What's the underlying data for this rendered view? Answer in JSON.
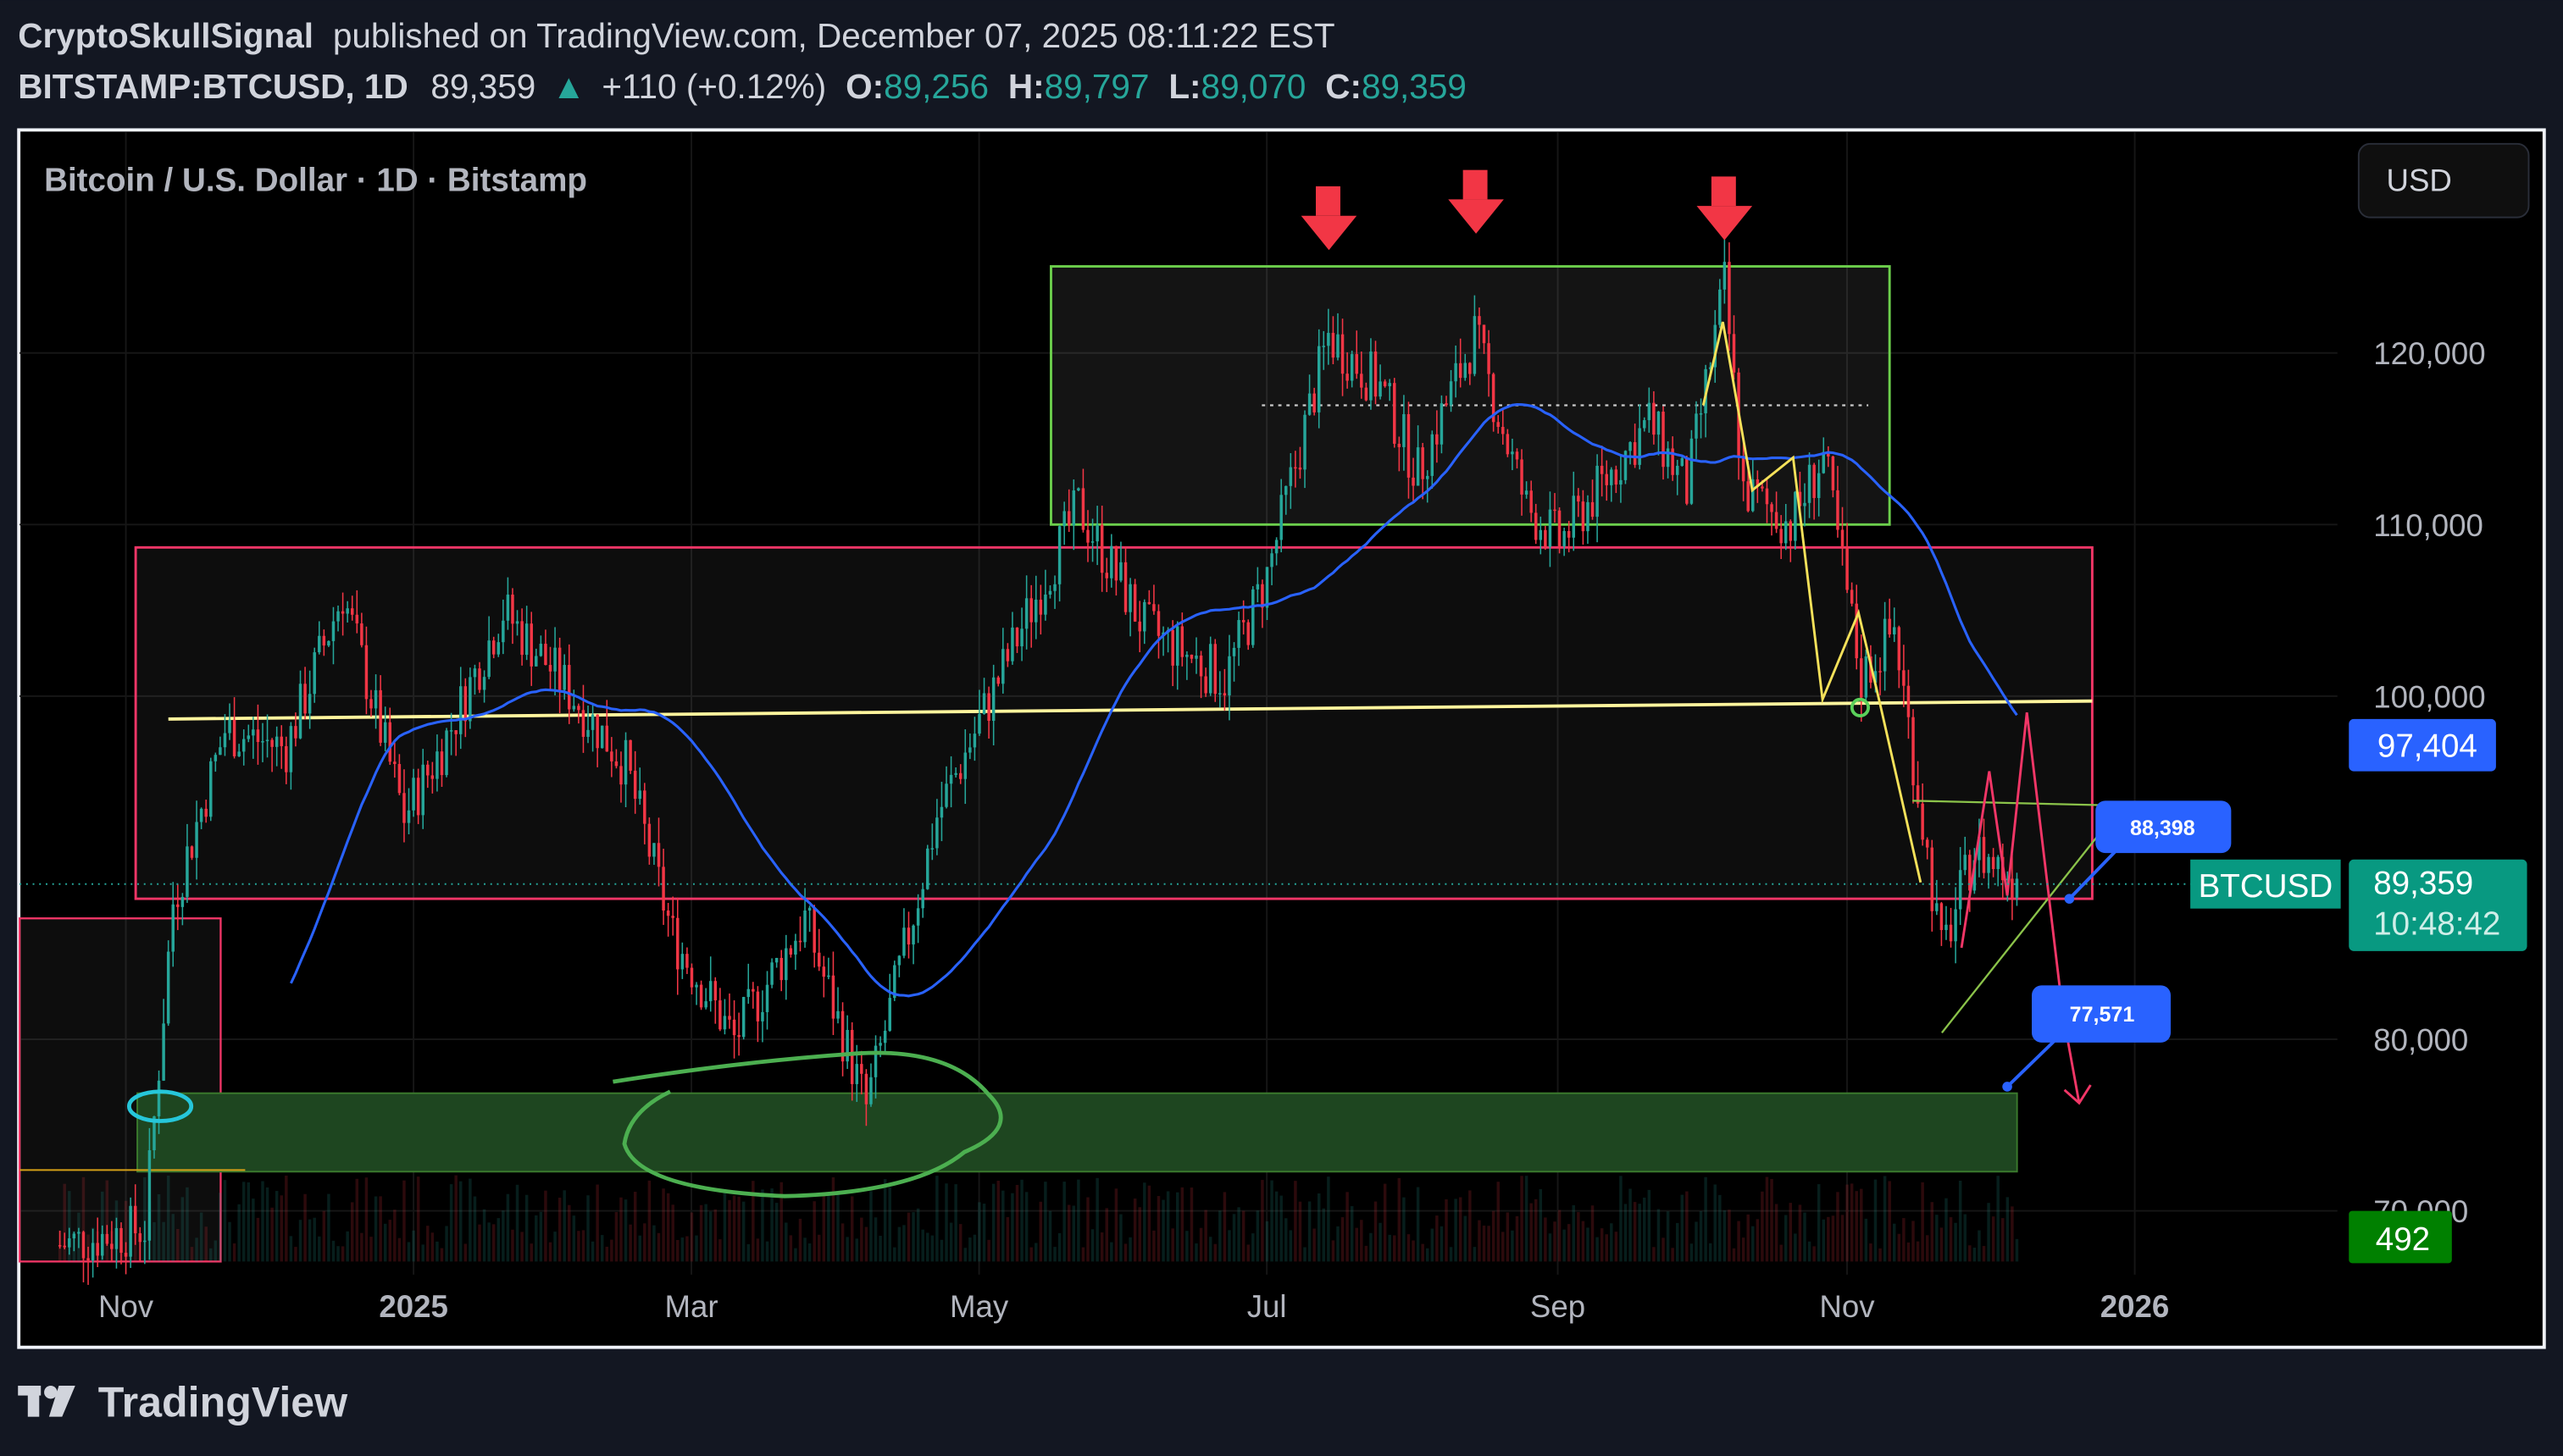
{
  "header": {
    "author": "CryptoSkullSignal",
    "published": "published on TradingView.com, December 07, 2025 08:11:22 EST",
    "symbol": "BITSTAMP:BTCUSD, 1D",
    "last": "89,359",
    "change": "+110 (+0.12%)",
    "o_label": "O:",
    "o": "89,256",
    "h_label": "H:",
    "h": "89,797",
    "l_label": "L:",
    "l": "89,070",
    "c_label": "C:",
    "c": "89,359"
  },
  "chart": {
    "title": "Bitcoin / U.S. Dollar · 1D · Bitstamp",
    "currency_button": "USD",
    "ma_label": "97,404",
    "price_symbol": "BTCUSD",
    "price_label": "89,359",
    "countdown": "10:48:42",
    "volume_label": "492",
    "target_label_1": "88,398",
    "target_label_2": "77,571",
    "colors": {
      "up": "#26a69a",
      "down": "#f23645",
      "ma": "#2962ff",
      "price_tag": "#089981",
      "volume_tag": "#008000",
      "label_blue": "#2962ff"
    }
  },
  "chart_data": {
    "type": "candlestick",
    "y_ticks": [
      "120,000",
      "110,000",
      "100,000",
      "80,000",
      "70,000"
    ],
    "x_ticks": [
      "Nov",
      "2025",
      "Mar",
      "May",
      "Jul",
      "Sep",
      "Nov",
      "2026"
    ],
    "ylim": [
      67000,
      127000
    ],
    "series": [
      {
        "date": "2024-10-18",
        "close": 68000
      },
      {
        "date": "2024-11-05",
        "close": 69000
      },
      {
        "date": "2024-11-11",
        "close": 88000
      },
      {
        "date": "2024-11-22",
        "close": 98000
      },
      {
        "date": "2024-12-05",
        "close": 97000
      },
      {
        "date": "2024-12-17",
        "close": 106000
      },
      {
        "date": "2024-12-30",
        "close": 93000
      },
      {
        "date": "2025-01-07",
        "close": 97000
      },
      {
        "date": "2025-01-20",
        "close": 105000
      },
      {
        "date": "2025-02-01",
        "close": 101000
      },
      {
        "date": "2025-02-15",
        "close": 96000
      },
      {
        "date": "2025-02-25",
        "close": 86000
      },
      {
        "date": "2025-03-10",
        "close": 80000
      },
      {
        "date": "2025-03-25",
        "close": 87000
      },
      {
        "date": "2025-04-07",
        "close": 76000
      },
      {
        "date": "2025-04-22",
        "close": 93000
      },
      {
        "date": "2025-05-10",
        "close": 104000
      },
      {
        "date": "2025-05-22",
        "close": 111000
      },
      {
        "date": "2025-06-05",
        "close": 104000
      },
      {
        "date": "2025-06-22",
        "close": 101000
      },
      {
        "date": "2025-07-01",
        "close": 107000
      },
      {
        "date": "2025-07-14",
        "close": 121000
      },
      {
        "date": "2025-07-25",
        "close": 118000
      },
      {
        "date": "2025-08-02",
        "close": 113000
      },
      {
        "date": "2025-08-14",
        "close": 121000
      },
      {
        "date": "2025-08-25",
        "close": 111000
      },
      {
        "date": "2025-09-01",
        "close": 109000
      },
      {
        "date": "2025-09-20",
        "close": 116000
      },
      {
        "date": "2025-09-28",
        "close": 112000
      },
      {
        "date": "2025-10-06",
        "close": 124000
      },
      {
        "date": "2025-10-10",
        "close": 112000
      },
      {
        "date": "2025-10-20",
        "close": 110000
      },
      {
        "date": "2025-10-27",
        "close": 114000
      },
      {
        "date": "2025-11-04",
        "close": 101000
      },
      {
        "date": "2025-11-11",
        "close": 104000
      },
      {
        "date": "2025-11-21",
        "close": 85000
      },
      {
        "date": "2025-11-28",
        "close": 91000
      },
      {
        "date": "2025-12-07",
        "close": 89359
      }
    ]
  },
  "footer": {
    "brand": "TradingView"
  }
}
